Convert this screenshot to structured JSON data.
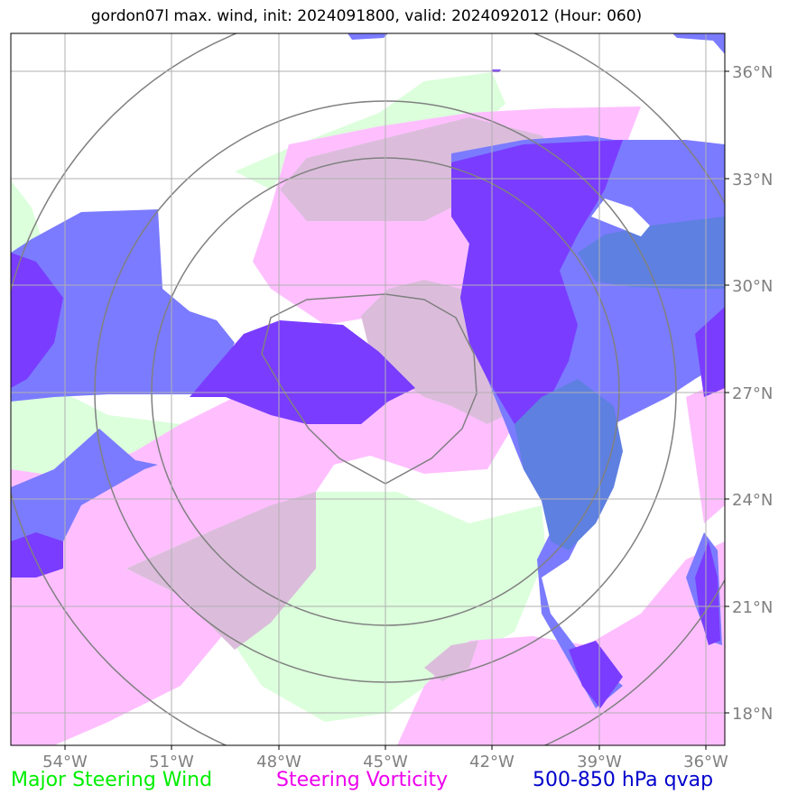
{
  "title": "gordon07l max. wind, init: 2024091800, valid: 2024092012 (Hour: 060)",
  "axes": {
    "x_ticks": [
      "54°W",
      "51°W",
      "48°W",
      "45°W",
      "42°W",
      "39°W",
      "36°W"
    ],
    "y_ticks": [
      "36°N",
      "33°N",
      "30°N",
      "27°N",
      "24°N",
      "21°N",
      "18°N"
    ]
  },
  "legend": [
    {
      "label": "Major Steering Wind",
      "color": "#00ee00"
    },
    {
      "label": "Steering Vorticity",
      "color": "#ee00ee"
    },
    {
      "label": "500-850 hPa qvap",
      "color": "#0000cc"
    }
  ],
  "colors": {
    "wind_fill": "#dcffdc",
    "vorticity_fill": "#ffbfff",
    "overlap_fill": "#dbbddb",
    "qvap_fill": "#7b7bff",
    "qvap_dark": "#7a3cff",
    "qvap_mid": "#5e80e0",
    "grid": "#b0b0b0",
    "rings": "#808080"
  }
}
